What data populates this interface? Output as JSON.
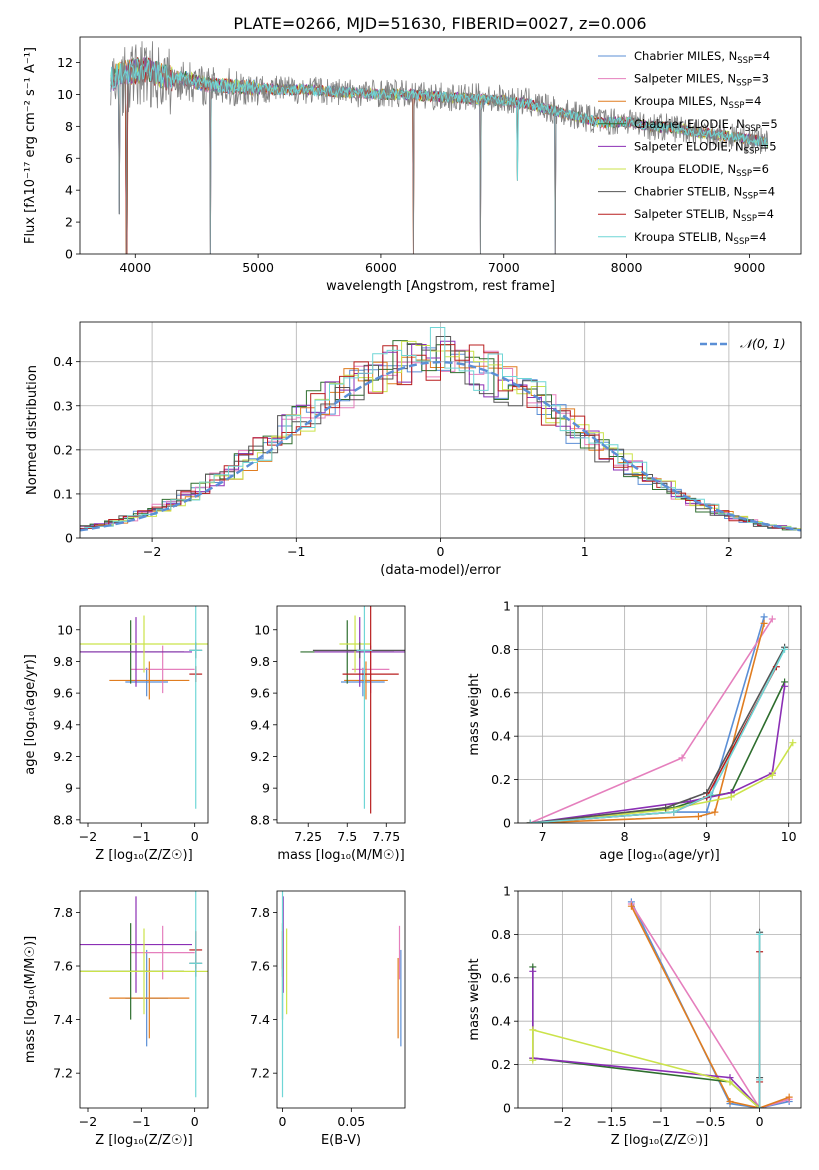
{
  "page_title": "PLATE=0266, MJD=51630, FIBERID=0027, z=0.006",
  "colors": {
    "chabrier_miles": "#5b8fd6",
    "salpeter_miles": "#e57fbd",
    "kroupa_miles": "#e07d20",
    "chabrier_elodie": "#2e6e2e",
    "salpeter_elodie": "#8b2fb5",
    "kroupa_elodie": "#cbe34a",
    "chabrier_stelib": "#555555",
    "salpeter_stelib": "#b81f1f",
    "kroupa_stelib": "#6fd6d6",
    "gaussian": "#5b8fd6",
    "grid": "#b0b0b0"
  },
  "chart_data": [
    {
      "id": "spectrum",
      "type": "line",
      "title": "PLATE=0266, MJD=51630, FIBERID=0027, z=0.006",
      "xlabel": "wavelength [Angstrom, rest frame]",
      "ylabel": "Flux [fλ10⁻¹⁷ erg cm⁻² s⁻¹ A⁻¹]",
      "xlim": [
        3550,
        9420
      ],
      "ylim": [
        0,
        13.6
      ],
      "xticks": [
        4000,
        5000,
        6000,
        7000,
        8000,
        9000
      ],
      "yticks": [
        0,
        2,
        4,
        6,
        8,
        10,
        12
      ],
      "grid": false,
      "legend_position": "top-right",
      "legend": [
        "Chabrier MILES, N_SSP=4",
        "Salpeter MILES, N_SSP=3",
        "Kroupa MILES, N_SSP=4",
        "Chabrier ELODIE, N_SSP=5",
        "Salpeter ELODIE, N_SSP=5",
        "Kroupa ELODIE, N_SSP=6",
        "Chabrier STELIB, N_SSP=4",
        "Salpeter STELIB, N_SSP=4",
        "Kroupa STELIB, N_SSP=4"
      ],
      "data_x": [
        3800,
        3900,
        4000,
        4100,
        4200,
        4300,
        4400,
        4500,
        4600,
        4800,
        5000,
        5200,
        5400,
        5600,
        5800,
        6000,
        6200,
        6400,
        6600,
        6800,
        7000,
        7200,
        7400,
        7600,
        7800,
        8000,
        8200,
        8400,
        8600,
        8800,
        9000,
        9150
      ],
      "data_y": [
        10.2,
        10.8,
        11.2,
        11.4,
        11.0,
        10.8,
        10.9,
        10.7,
        10.5,
        10.4,
        10.4,
        10.3,
        10.3,
        10.2,
        10.1,
        10.1,
        10.0,
        9.9,
        9.8,
        9.8,
        9.7,
        9.5,
        9.0,
        8.7,
        8.3,
        8.4,
        8.0,
        7.9,
        7.7,
        7.4,
        7.2,
        7.0
      ],
      "model_y": [
        11.0,
        11.3,
        11.5,
        11.6,
        11.2,
        11.0,
        11.0,
        10.8,
        10.6,
        10.5,
        10.4,
        10.3,
        10.3,
        10.2,
        10.1,
        10.0,
        10.0,
        9.9,
        9.8,
        9.7,
        9.6,
        9.4,
        9.0,
        8.6,
        8.2,
        8.3,
        8.0,
        7.9,
        7.6,
        7.4,
        7.2,
        7.0
      ],
      "dips": [
        {
          "x": 3870,
          "min": 2.5
        },
        {
          "x": 3930,
          "min": 0.0
        },
        {
          "x": 4612,
          "min": 0.0
        },
        {
          "x": 6265,
          "min": 0.0
        },
        {
          "x": 6810,
          "min": 0.0
        },
        {
          "x": 7110,
          "min": 4.6
        },
        {
          "x": 7420,
          "min": 0.0
        }
      ]
    },
    {
      "id": "residuals",
      "type": "step",
      "xlabel": "(data-model)/error",
      "ylabel": "Normed distribution",
      "xlim": [
        -2.5,
        2.5
      ],
      "ylim": [
        0,
        0.49
      ],
      "xticks": [
        -2,
        -1,
        0,
        1,
        2
      ],
      "yticks": [
        0.0,
        0.1,
        0.2,
        0.3,
        0.4
      ],
      "grid": true,
      "legend_position": "top-right",
      "legend": [
        "𝒩(0, 1)"
      ],
      "bin_width": 0.1,
      "histogram_heights": [
        0.025,
        0.03,
        0.038,
        0.045,
        0.055,
        0.068,
        0.082,
        0.098,
        0.115,
        0.134,
        0.155,
        0.177,
        0.2,
        0.224,
        0.248,
        0.272,
        0.295,
        0.318,
        0.338,
        0.357,
        0.372,
        0.385,
        0.393,
        0.397,
        0.398,
        0.397,
        0.393,
        0.385,
        0.372,
        0.357,
        0.338,
        0.318,
        0.295,
        0.272,
        0.248,
        0.224,
        0.2,
        0.177,
        0.155,
        0.134,
        0.115,
        0.098,
        0.082,
        0.068,
        0.055,
        0.045,
        0.038,
        0.03,
        0.025,
        0.02
      ]
    },
    {
      "id": "age_vs_Z",
      "type": "errorbar",
      "xlabel": "Z [log₁₀(Z/Z☉)]",
      "ylabel": "age  [log₁₀(age/yr)]",
      "xlim": [
        -2.15,
        0.25
      ],
      "ylim": [
        8.78,
        10.15
      ],
      "xticks": [
        -2,
        -1,
        0
      ],
      "yticks": [
        8.8,
        9.0,
        9.2,
        9.4,
        9.6,
        9.8,
        10.0
      ],
      "points": [
        {
          "model": "chabrier_miles",
          "x": -0.9,
          "xerr": 0.4,
          "y": 9.67,
          "yerr": 0.09
        },
        {
          "model": "salpeter_miles",
          "x": -0.6,
          "xerr": 0.6,
          "y": 9.75,
          "yerr": 0.15
        },
        {
          "model": "kroupa_miles",
          "x": -0.85,
          "xerr": 0.75,
          "y": 9.68,
          "yerr": 0.12
        },
        {
          "model": "chabrier_elodie",
          "x": -1.2,
          "xerr": 1.0,
          "y": 9.86,
          "yerr": 0.2
        },
        {
          "model": "salpeter_elodie",
          "x": -1.1,
          "xerr": 1.05,
          "y": 9.86,
          "yerr": 0.22
        },
        {
          "model": "kroupa_elodie",
          "x": -0.95,
          "xerr": 1.2,
          "y": 9.91,
          "yerr": 0.18
        },
        {
          "model": "chabrier_stelib",
          "x": 0.02,
          "xerr": 0.12,
          "y": 9.87,
          "yerr": 0.05
        },
        {
          "model": "salpeter_stelib",
          "x": 0.02,
          "xerr": 0.12,
          "y": 9.72,
          "yerr": 0.05
        },
        {
          "model": "kroupa_stelib",
          "x": 0.02,
          "xerr": 0.12,
          "y": 9.87,
          "yerr": 1.0
        }
      ]
    },
    {
      "id": "age_vs_mass",
      "type": "errorbar",
      "xlabel": "mass [log₁₀(M/M☉)]",
      "ylabel": "",
      "xlim": [
        7.05,
        7.87
      ],
      "ylim": [
        8.78,
        10.15
      ],
      "xticks": [
        7.25,
        7.5,
        7.75
      ],
      "yticks": [
        8.8,
        9.0,
        9.2,
        9.4,
        9.6,
        9.8,
        10.0
      ],
      "points": [
        {
          "model": "chabrier_miles",
          "x": 7.6,
          "xerr": 0.14,
          "y": 9.67,
          "yerr": 0.09
        },
        {
          "model": "salpeter_miles",
          "x": 7.65,
          "xerr": 0.12,
          "y": 9.75,
          "yerr": 0.15
        },
        {
          "model": "kroupa_miles",
          "x": 7.62,
          "xerr": 0.14,
          "y": 9.68,
          "yerr": 0.12
        },
        {
          "model": "chabrier_elodie",
          "x": 7.5,
          "xerr": 0.3,
          "y": 9.86,
          "yerr": 0.2
        },
        {
          "model": "salpeter_elodie",
          "x": 7.58,
          "xerr": 0.29,
          "y": 9.86,
          "yerr": 0.22
        },
        {
          "model": "kroupa_elodie",
          "x": 7.55,
          "xerr": 0.1,
          "y": 9.91,
          "yerr": 0.18
        },
        {
          "model": "chabrier_stelib",
          "x": 7.58,
          "xerr": 0.3,
          "y": 9.87,
          "yerr": 0.05
        },
        {
          "model": "salpeter_stelib",
          "x": 7.65,
          "xerr": 0.18,
          "y": 9.72,
          "yerr": 0.88
        },
        {
          "model": "kroupa_stelib",
          "x": 7.61,
          "xerr": 0.05,
          "y": 9.87,
          "yerr": 1.0
        }
      ]
    },
    {
      "id": "weight_vs_age",
      "type": "line",
      "xlabel": "age  [log₁₀(age/yr)]",
      "ylabel": "mass weight",
      "xlim": [
        6.7,
        10.15
      ],
      "ylim": [
        0,
        1.0
      ],
      "xticks": [
        7,
        8,
        9,
        10
      ],
      "yticks": [
        0.0,
        0.2,
        0.4,
        0.6,
        0.8,
        1.0
      ],
      "grid": true,
      "series": [
        {
          "model": "chabrier_miles",
          "x": [
            6.85,
            8.6,
            9.0,
            9.7
          ],
          "y": [
            0.0,
            0.05,
            0.05,
            0.95
          ]
        },
        {
          "model": "salpeter_miles",
          "x": [
            6.85,
            8.7,
            9.8
          ],
          "y": [
            0.0,
            0.3,
            0.94
          ]
        },
        {
          "model": "kroupa_miles",
          "x": [
            6.85,
            8.9,
            9.1,
            9.7
          ],
          "y": [
            0.0,
            0.03,
            0.05,
            0.92
          ]
        },
        {
          "model": "chabrier_elodie",
          "x": [
            6.85,
            8.6,
            9.0,
            9.3,
            9.95
          ],
          "y": [
            0.0,
            0.07,
            0.12,
            0.14,
            0.65
          ]
        },
        {
          "model": "salpeter_elodie",
          "x": [
            6.85,
            8.8,
            9.3,
            9.8,
            9.95
          ],
          "y": [
            0.0,
            0.1,
            0.14,
            0.23,
            0.63
          ]
        },
        {
          "model": "kroupa_elodie",
          "x": [
            6.85,
            8.5,
            9.3,
            9.8,
            10.05
          ],
          "y": [
            0.0,
            0.06,
            0.12,
            0.22,
            0.37
          ]
        },
        {
          "model": "chabrier_stelib",
          "x": [
            6.85,
            8.5,
            9.0,
            9.95
          ],
          "y": [
            0.0,
            0.07,
            0.14,
            0.81
          ]
        },
        {
          "model": "salpeter_stelib",
          "x": [
            6.85,
            8.6,
            9.0,
            9.85
          ],
          "y": [
            0.0,
            0.05,
            0.12,
            0.72
          ]
        },
        {
          "model": "kroupa_stelib",
          "x": [
            6.85,
            8.6,
            9.05,
            9.95
          ],
          "y": [
            0.0,
            0.05,
            0.13,
            0.8
          ]
        }
      ]
    },
    {
      "id": "mass_vs_Z",
      "type": "errorbar",
      "xlabel": "Z [log₁₀(Z/Z☉)]",
      "ylabel": "mass [log₁₀(M/M☉)]",
      "xlim": [
        -2.15,
        0.25
      ],
      "ylim": [
        7.07,
        7.88
      ],
      "xticks": [
        -2,
        -1,
        0
      ],
      "yticks": [
        7.2,
        7.4,
        7.6,
        7.8
      ],
      "points": [
        {
          "model": "chabrier_miles",
          "x": -0.9,
          "xerr": 0.4,
          "y": 7.48,
          "yerr": 0.18
        },
        {
          "model": "salpeter_miles",
          "x": -0.6,
          "xerr": 0.6,
          "y": 7.65,
          "yerr": 0.1
        },
        {
          "model": "kroupa_miles",
          "x": -0.85,
          "xerr": 0.75,
          "y": 7.48,
          "yerr": 0.15
        },
        {
          "model": "chabrier_elodie",
          "x": -1.2,
          "xerr": 1.0,
          "y": 7.58,
          "yerr": 0.18
        },
        {
          "model": "salpeter_elodie",
          "x": -1.1,
          "xerr": 1.05,
          "y": 7.68,
          "yerr": 0.18
        },
        {
          "model": "kroupa_elodie",
          "x": -0.95,
          "xerr": 1.2,
          "y": 7.58,
          "yerr": 0.16
        },
        {
          "model": "chabrier_stelib",
          "x": 0.02,
          "xerr": 0.12,
          "y": 7.61,
          "yerr": 0.05
        },
        {
          "model": "salpeter_stelib",
          "x": 0.02,
          "xerr": 0.12,
          "y": 7.66,
          "yerr": 0.07
        },
        {
          "model": "kroupa_stelib",
          "x": 0.02,
          "xerr": 0.12,
          "y": 7.61,
          "yerr": 0.5
        }
      ]
    },
    {
      "id": "mass_vs_ebv",
      "type": "errorbar",
      "xlabel": "E(B-V)",
      "ylabel": "",
      "xlim": [
        -0.004,
        0.089
      ],
      "ylim": [
        7.07,
        7.88
      ],
      "xticks": [
        0.0,
        0.05
      ],
      "yticks": [
        7.2,
        7.4,
        7.6,
        7.8
      ],
      "points": [
        {
          "model": "chabrier_miles",
          "x": 0.086,
          "xerr": 0,
          "y": 7.48,
          "yerr": 0.18
        },
        {
          "model": "salpeter_miles",
          "x": 0.085,
          "xerr": 0,
          "y": 7.65,
          "yerr": 0.1
        },
        {
          "model": "kroupa_miles",
          "x": 0.084,
          "xerr": 0,
          "y": 7.48,
          "yerr": 0.15
        },
        {
          "model": "chabrier_elodie",
          "x": 0.0,
          "xerr": 0,
          "y": 7.58,
          "yerr": 0.18
        },
        {
          "model": "salpeter_elodie",
          "x": 0.0005,
          "xerr": 0,
          "y": 7.68,
          "yerr": 0.18
        },
        {
          "model": "kroupa_elodie",
          "x": 0.003,
          "xerr": 0,
          "y": 7.58,
          "yerr": 0.16
        },
        {
          "model": "chabrier_stelib",
          "x": 0.0,
          "xerr": 0,
          "y": 7.61,
          "yerr": 0.05
        },
        {
          "model": "salpeter_stelib",
          "x": 0.0,
          "xerr": 0,
          "y": 7.66,
          "yerr": 0.07
        },
        {
          "model": "kroupa_stelib",
          "x": 0.0,
          "xerr": 0,
          "y": 7.61,
          "yerr": 0.5
        }
      ]
    },
    {
      "id": "weight_vs_Z",
      "type": "line",
      "xlabel": "Z [log₁₀(Z/Z☉)]",
      "ylabel": "mass weight",
      "xlim": [
        -2.45,
        0.42
      ],
      "ylim": [
        0,
        1.0
      ],
      "xticks": [
        -2.0,
        -1.5,
        -1.0,
        -0.5,
        0.0
      ],
      "yticks": [
        0.0,
        0.2,
        0.4,
        0.6,
        0.8,
        1.0
      ],
      "grid": true,
      "series": [
        {
          "model": "chabrier_miles",
          "x": [
            -1.3,
            -0.3,
            0.0,
            0.3
          ],
          "y": [
            0.95,
            0.02,
            0.0,
            0.03
          ]
        },
        {
          "model": "salpeter_miles",
          "x": [
            -1.3,
            0.0,
            0.3
          ],
          "y": [
            0.94,
            0.0,
            0.04
          ]
        },
        {
          "model": "kroupa_miles",
          "x": [
            -1.3,
            -0.3,
            0.0,
            0.3
          ],
          "y": [
            0.93,
            0.03,
            0.0,
            0.05
          ]
        },
        {
          "model": "chabrier_elodie",
          "x": [
            -2.3,
            -2.3,
            -0.3,
            0.0
          ],
          "y": [
            0.65,
            0.23,
            0.12,
            0.0
          ]
        },
        {
          "model": "salpeter_elodie",
          "x": [
            -2.3,
            -2.3,
            -0.3,
            0.0
          ],
          "y": [
            0.63,
            0.23,
            0.14,
            0.0
          ]
        },
        {
          "model": "kroupa_elodie",
          "x": [
            -2.3,
            -2.3,
            -0.3,
            0.0
          ],
          "y": [
            0.22,
            0.36,
            0.12,
            0.0
          ]
        },
        {
          "model": "chabrier_stelib",
          "x": [
            0.0,
            0.0,
            0.0
          ],
          "y": [
            0.81,
            0.14,
            0.0
          ]
        },
        {
          "model": "salpeter_stelib",
          "x": [
            0.0,
            0.0,
            0.0
          ],
          "y": [
            0.72,
            0.12,
            0.0
          ]
        },
        {
          "model": "kroupa_stelib",
          "x": [
            0.0,
            0.0,
            0.0
          ],
          "y": [
            0.8,
            0.13,
            0.0
          ]
        }
      ]
    }
  ]
}
